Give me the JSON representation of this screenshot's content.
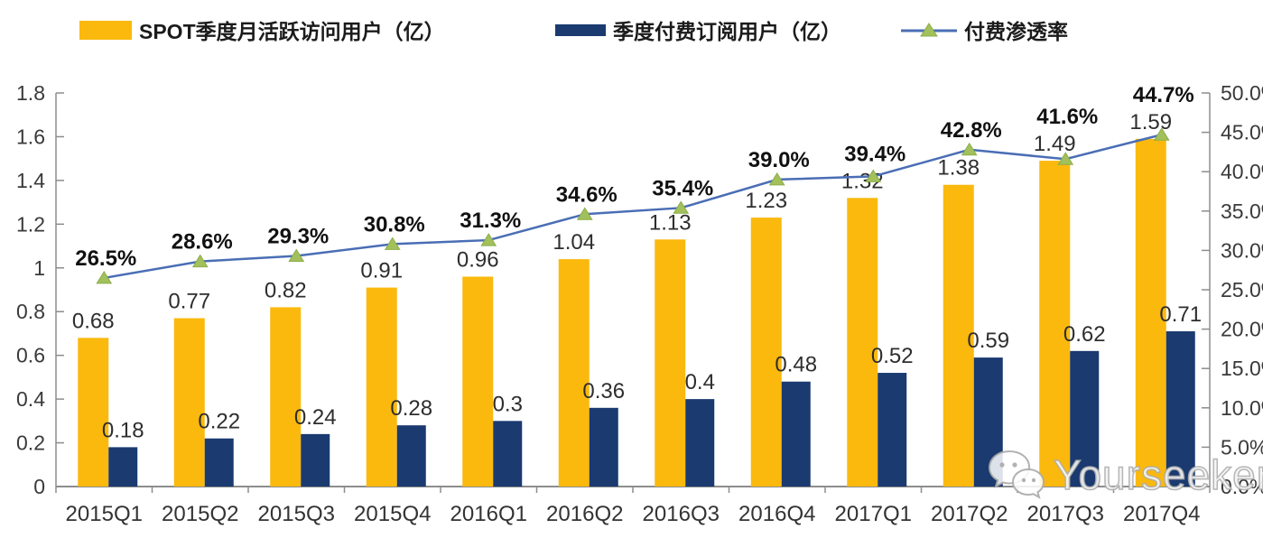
{
  "watermark": {
    "text": "Yourseeker",
    "icon": "wechat-icon"
  },
  "chart_data": {
    "type": "combo-bar-line",
    "title": "",
    "legend_position": "top",
    "grid": false,
    "categories": [
      "2015Q1",
      "2015Q2",
      "2015Q3",
      "2015Q4",
      "2016Q1",
      "2016Q2",
      "2016Q3",
      "2016Q4",
      "2017Q1",
      "2017Q2",
      "2017Q3",
      "2017Q4"
    ],
    "series": [
      {
        "name": "SPOT季度月活跃访问用户（亿）",
        "type": "bar",
        "axis": "left",
        "color": "#FBB90E",
        "values": [
          0.68,
          0.77,
          0.82,
          0.91,
          0.96,
          1.04,
          1.13,
          1.23,
          1.32,
          1.38,
          1.49,
          1.59
        ],
        "labels": [
          "0.68",
          "0.77",
          "0.82",
          "0.91",
          "0.96",
          "1.04",
          "1.13",
          "1.23",
          "1.32",
          "1.38",
          "1.49",
          "1.59"
        ]
      },
      {
        "name": "季度付费订阅用户（亿）",
        "type": "bar",
        "axis": "left",
        "color": "#1A3A70",
        "values": [
          0.18,
          0.22,
          0.24,
          0.28,
          0.3,
          0.36,
          0.4,
          0.48,
          0.52,
          0.59,
          0.62,
          0.71
        ],
        "labels": [
          "0.18",
          "0.22",
          "0.24",
          "0.28",
          "0.3",
          "0.36",
          "0.4",
          "0.48",
          "0.52",
          "0.59",
          "0.62",
          "0.71"
        ]
      },
      {
        "name": "付费渗透率",
        "type": "line",
        "axis": "right",
        "color": "#4A6EB5",
        "marker": "triangle",
        "marker_color": "#A2C05B",
        "marker_stroke": "#8BAD49",
        "values": [
          26.5,
          28.6,
          29.3,
          30.8,
          31.3,
          34.6,
          35.4,
          39.0,
          39.4,
          42.8,
          41.6,
          44.7
        ],
        "labels": [
          "26.5%",
          "28.6%",
          "29.3%",
          "30.8%",
          "31.3%",
          "34.6%",
          "35.4%",
          "39.0%",
          "39.4%",
          "42.8%",
          "41.6%",
          "44.7%"
        ]
      }
    ],
    "left_axis": {
      "min": 0,
      "max": 1.8,
      "ticks": [
        "0",
        "0.2",
        "0.4",
        "0.6",
        "0.8",
        "1",
        "1.2",
        "1.4",
        "1.6",
        "1.8"
      ]
    },
    "right_axis": {
      "min": 0,
      "max": 50,
      "ticks": [
        "0.0%",
        "5.0%",
        "10.0%",
        "15.0%",
        "20.0%",
        "25.0%",
        "30.0%",
        "35.0%",
        "40.0%",
        "45.0%",
        "50.0%"
      ]
    },
    "axis_color": "#8d8d8d"
  }
}
